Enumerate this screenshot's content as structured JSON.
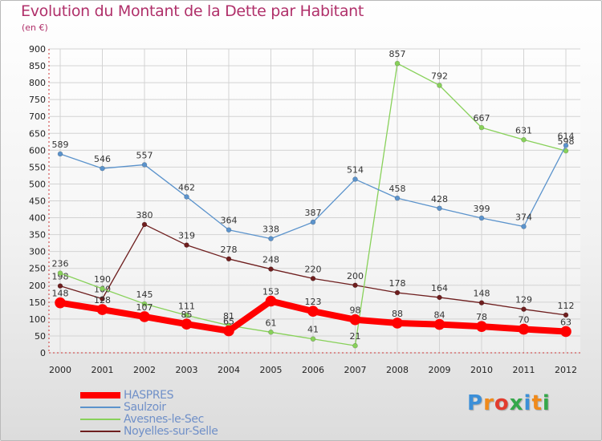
{
  "title": "Evolution du Montant de la Dette par Habitant",
  "subtitle": "(en €)",
  "logo": {
    "letters": [
      "P",
      "r",
      "o",
      "x",
      "i",
      "t",
      "i"
    ],
    "colors": [
      "#3b8fd8",
      "#f08a1a",
      "#e23c2e",
      "#35a84a",
      "#3b8fd8",
      "#f08a1a",
      "#35a84a"
    ]
  },
  "chart_data": {
    "type": "line",
    "title": "Evolution du Montant de la Dette par Habitant",
    "ylabel": "(en €)",
    "xlabel": "",
    "x": [
      "2000",
      "2001",
      "2002",
      "2003",
      "2004",
      "2005",
      "2006",
      "2007",
      "2008",
      "2009",
      "2010",
      "2011",
      "2012"
    ],
    "ylim": [
      0,
      900
    ],
    "yticks": [
      0,
      50,
      100,
      150,
      200,
      250,
      300,
      350,
      400,
      450,
      500,
      550,
      600,
      650,
      700,
      750,
      800,
      850,
      900
    ],
    "yticks_labels": [
      "0",
      "50",
      "100",
      "150",
      "200",
      "250",
      "300",
      "350",
      "400",
      "450",
      "500",
      "550",
      "600",
      "650",
      "700",
      "750",
      "800",
      "850",
      "900"
    ],
    "grid": true,
    "legend_position": "bottom-left",
    "series": [
      {
        "name": "Noyelles-sur-Selle",
        "color": "#6e1e1e",
        "values": [
          198,
          160,
          380,
          319,
          278,
          248,
          220,
          200,
          178,
          164,
          148,
          129,
          112
        ],
        "labels": [
          "198",
          "160",
          "380",
          "319",
          "278",
          "248",
          "220",
          "200",
          "178",
          "164",
          "148",
          "129",
          "112"
        ]
      },
      {
        "name": "Avesnes-le-Sec",
        "color": "#88d15a",
        "values": [
          236,
          190,
          145,
          111,
          81,
          61,
          41,
          21,
          857,
          792,
          667,
          631,
          598
        ],
        "labels": [
          "236",
          "190",
          "145",
          "111",
          "81",
          "61",
          "41",
          "21",
          "857",
          "792",
          "667",
          "631",
          "598"
        ]
      },
      {
        "name": "Saulzoir",
        "color": "#5b93cc",
        "values": [
          589,
          546,
          557,
          462,
          364,
          338,
          387,
          514,
          458,
          428,
          399,
          374,
          614
        ],
        "labels": [
          "589",
          "546",
          "557",
          "462",
          "364",
          "338",
          "387",
          "514",
          "458",
          "428",
          "399",
          "374",
          "614"
        ]
      },
      {
        "name": "HASPRES",
        "color": "#ff0000",
        "values": [
          148,
          128,
          107,
          85,
          65,
          153,
          123,
          98,
          88,
          84,
          78,
          70,
          63
        ],
        "labels": [
          "148",
          "128",
          "107",
          "85",
          "65",
          "153",
          "123",
          "98",
          "88",
          "84",
          "78",
          "70",
          "63"
        ]
      }
    ],
    "legend": [
      "HASPRES",
      "Saulzoir",
      "Avesnes-le-Sec",
      "Noyelles-sur-Selle"
    ]
  }
}
